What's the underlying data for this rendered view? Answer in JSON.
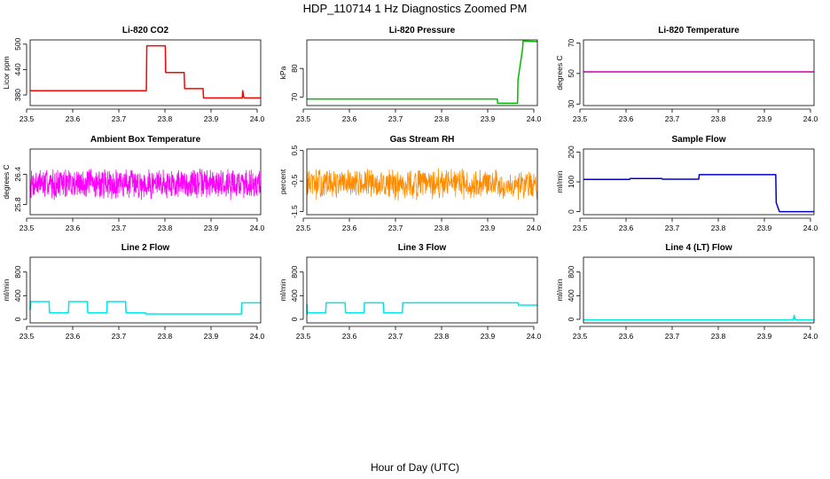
{
  "figure": {
    "title": "HDP_110714  1 Hz Diagnostics Zoomed PM",
    "xlabel": "Hour of Day (UTC)"
  },
  "chart_data": [
    {
      "type": "line",
      "title": "Li-820 CO2",
      "ylabel": "Licor ppm",
      "color": "#ff0000",
      "xlim": [
        23.5,
        24.0
      ],
      "ylim": [
        355,
        510
      ],
      "xticks": [
        "23.5",
        "23.6",
        "23.7",
        "23.8",
        "23.9",
        "24.0"
      ],
      "yticks": [
        380,
        440,
        500
      ],
      "series": [
        {
          "x": [
            23.5,
            23.752,
            23.753,
            23.793,
            23.794,
            23.834,
            23.835,
            23.875,
            23.876,
            23.96,
            23.961,
            23.963,
            23.964,
            24.0
          ],
          "y": [
            390,
            390,
            496,
            496,
            433,
            433,
            395,
            395,
            373,
            373,
            390,
            376,
            373,
            373
          ]
        }
      ]
    },
    {
      "type": "line",
      "title": "Li-820 Pressure",
      "ylabel": "kPa",
      "color": "#00bb00",
      "xlim": [
        23.5,
        24.0
      ],
      "ylim": [
        67,
        90
      ],
      "xticks": [
        "23.5",
        "23.6",
        "23.7",
        "23.8",
        "23.9",
        "24.0"
      ],
      "yticks": [
        70,
        80
      ],
      "series": [
        {
          "x": [
            23.5,
            23.913,
            23.914,
            23.957,
            23.958,
            23.968,
            23.969,
            24.0
          ],
          "y": [
            69.3,
            69.3,
            67.8,
            67.8,
            76,
            87,
            89.6,
            89.4
          ]
        }
      ]
    },
    {
      "type": "line",
      "title": "Li-820 Temperature",
      "ylabel": "degrees C",
      "color": "#cc00aa",
      "xlim": [
        23.5,
        24.0
      ],
      "ylim": [
        29,
        72
      ],
      "xticks": [
        "23.5",
        "23.6",
        "23.7",
        "23.8",
        "23.9",
        "24.0"
      ],
      "yticks": [
        30,
        50,
        70
      ],
      "series": [
        {
          "x": [
            23.5,
            24.0
          ],
          "y": [
            51.1,
            51.1
          ]
        }
      ]
    },
    {
      "type": "line",
      "title": "Ambient Box Temperature",
      "ylabel": "degrees C",
      "color": "#ff00ff",
      "xlim": [
        23.5,
        24.0
      ],
      "ylim": [
        25.6,
        26.9
      ],
      "xticks": [
        "23.5",
        "23.6",
        "23.7",
        "23.8",
        "23.9",
        "24.0"
      ],
      "yticks": [
        25.8,
        26.4
      ],
      "noise": {
        "n": 900,
        "base": 26.22,
        "amp": 0.33,
        "seed": 7
      }
    },
    {
      "type": "line",
      "title": "Gas Stream RH",
      "ylabel": "percent",
      "color": "#ff8c00",
      "xlim": [
        23.5,
        24.0
      ],
      "ylim": [
        -1.6,
        0.55
      ],
      "xticks": [
        "23.5",
        "23.6",
        "23.7",
        "23.8",
        "23.9",
        "24.0"
      ],
      "yticks": [
        -1.5,
        -0.5,
        0.5
      ],
      "noise": {
        "n": 700,
        "base": -0.6,
        "amp": 0.55,
        "seed": 13
      }
    },
    {
      "type": "line",
      "title": "Sample Flow",
      "ylabel": "ml/min",
      "color": "#0000cc",
      "xlim": [
        23.5,
        24.0
      ],
      "ylim": [
        -10,
        210
      ],
      "xticks": [
        "23.5",
        "23.6",
        "23.7",
        "23.8",
        "23.9",
        "24.0"
      ],
      "yticks": [
        0,
        100,
        200
      ],
      "series": [
        {
          "x": [
            23.5,
            23.6,
            23.601,
            23.67,
            23.671,
            23.75,
            23.751,
            23.917,
            23.918,
            23.925,
            24.0
          ],
          "y": [
            108,
            108,
            111,
            111,
            109,
            109,
            124,
            124,
            30,
            0,
            0
          ]
        }
      ]
    },
    {
      "type": "line",
      "title": "Line 2 Flow",
      "ylabel": "ml/min",
      "color": "#00e5e5",
      "xlim": [
        23.5,
        24.0
      ],
      "ylim": [
        -60,
        1050
      ],
      "xticks": [
        "23.5",
        "23.6",
        "23.7",
        "23.8",
        "23.9",
        "24.0"
      ],
      "yticks": [
        0,
        400,
        800
      ],
      "series": [
        {
          "x": [
            23.5,
            23.501,
            23.541,
            23.542,
            23.583,
            23.584,
            23.624,
            23.625,
            23.666,
            23.667,
            23.707,
            23.708,
            23.75,
            23.751,
            23.958,
            23.959,
            24.0
          ],
          "y": [
            160,
            300,
            300,
            110,
            110,
            300,
            300,
            110,
            110,
            300,
            300,
            110,
            110,
            90,
            90,
            280,
            280
          ]
        }
      ]
    },
    {
      "type": "line",
      "title": "Line 3 Flow",
      "ylabel": "ml/min",
      "color": "#00e5e5",
      "xlim": [
        23.5,
        24.0
      ],
      "ylim": [
        -60,
        1050
      ],
      "xticks": [
        "23.5",
        "23.6",
        "23.7",
        "23.8",
        "23.9",
        "24.0"
      ],
      "yticks": [
        0,
        400,
        800
      ],
      "series": [
        {
          "x": [
            23.5,
            23.501,
            23.502,
            23.541,
            23.542,
            23.583,
            23.584,
            23.624,
            23.625,
            23.666,
            23.667,
            23.707,
            23.708,
            23.958,
            23.959,
            24.0
          ],
          "y": [
            260,
            90,
            110,
            110,
            280,
            280,
            110,
            110,
            280,
            280,
            110,
            110,
            280,
            280,
            240,
            240
          ]
        }
      ]
    },
    {
      "type": "line",
      "title": "Line 4 (LT) Flow",
      "ylabel": "ml/min",
      "color": "#00e5e5",
      "xlim": [
        23.5,
        24.0
      ],
      "ylim": [
        -60,
        1050
      ],
      "xticks": [
        "23.5",
        "23.6",
        "23.7",
        "23.8",
        "23.9",
        "24.0"
      ],
      "yticks": [
        0,
        400,
        800
      ],
      "series": [
        {
          "x": [
            23.5,
            23.955,
            23.956,
            23.957,
            23.958,
            23.959,
            23.96,
            24.0
          ],
          "y": [
            -10,
            -10,
            30,
            70,
            30,
            0,
            -10,
            -10
          ]
        }
      ]
    }
  ]
}
